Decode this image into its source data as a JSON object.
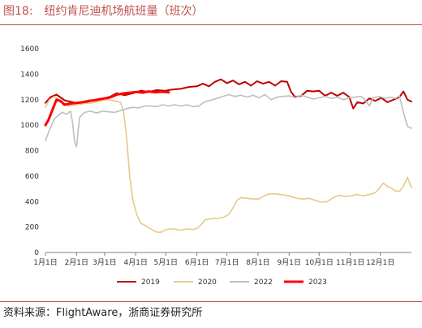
{
  "figure": {
    "number": "图18:",
    "title": "纽约肯尼迪机场航班量（班次）"
  },
  "source": "资料来源：FlightAware，浙商证券研究所",
  "chart_data": {
    "type": "line",
    "title": "",
    "xlabel": "",
    "ylabel": "",
    "ylim": [
      0,
      1600
    ],
    "yticks": [
      0,
      200,
      400,
      600,
      800,
      1000,
      1200,
      1400,
      1600
    ],
    "xlim": [
      1,
      366
    ],
    "xticks": [
      {
        "day": 1,
        "label": "1月1日"
      },
      {
        "day": 32,
        "label": "2月1日"
      },
      {
        "day": 60,
        "label": "3月1日"
      },
      {
        "day": 91,
        "label": "4月1日"
      },
      {
        "day": 121,
        "label": "5月1日"
      },
      {
        "day": 152,
        "label": "6月1日"
      },
      {
        "day": 182,
        "label": "7月1日"
      },
      {
        "day": 213,
        "label": "8月1日"
      },
      {
        "day": 244,
        "label": "9月1日"
      },
      {
        "day": 274,
        "label": "10月1日"
      },
      {
        "day": 305,
        "label": "11月1日"
      },
      {
        "day": 335,
        "label": "12月1日"
      }
    ],
    "x_unit": "day of year",
    "grid": false,
    "legend": "bottom",
    "series": [
      {
        "name": "2019",
        "color": "#c00000",
        "width": 2,
        "points": [
          [
            1,
            1175
          ],
          [
            6,
            1220
          ],
          [
            12,
            1240
          ],
          [
            20,
            1195
          ],
          [
            28,
            1180
          ],
          [
            36,
            1165
          ],
          [
            44,
            1185
          ],
          [
            52,
            1200
          ],
          [
            60,
            1210
          ],
          [
            66,
            1225
          ],
          [
            72,
            1250
          ],
          [
            80,
            1235
          ],
          [
            88,
            1250
          ],
          [
            96,
            1270
          ],
          [
            104,
            1260
          ],
          [
            112,
            1275
          ],
          [
            120,
            1270
          ],
          [
            128,
            1280
          ],
          [
            136,
            1285
          ],
          [
            144,
            1300
          ],
          [
            152,
            1305
          ],
          [
            158,
            1325
          ],
          [
            164,
            1305
          ],
          [
            170,
            1340
          ],
          [
            176,
            1360
          ],
          [
            182,
            1330
          ],
          [
            188,
            1350
          ],
          [
            194,
            1320
          ],
          [
            200,
            1340
          ],
          [
            206,
            1310
          ],
          [
            212,
            1345
          ],
          [
            218,
            1325
          ],
          [
            224,
            1340
          ],
          [
            230,
            1310
          ],
          [
            236,
            1345
          ],
          [
            242,
            1340
          ],
          [
            246,
            1260
          ],
          [
            250,
            1220
          ],
          [
            256,
            1230
          ],
          [
            262,
            1270
          ],
          [
            268,
            1265
          ],
          [
            274,
            1270
          ],
          [
            280,
            1230
          ],
          [
            286,
            1255
          ],
          [
            292,
            1230
          ],
          [
            298,
            1255
          ],
          [
            304,
            1220
          ],
          [
            308,
            1130
          ],
          [
            312,
            1180
          ],
          [
            318,
            1170
          ],
          [
            324,
            1210
          ],
          [
            330,
            1190
          ],
          [
            336,
            1215
          ],
          [
            342,
            1180
          ],
          [
            348,
            1200
          ],
          [
            354,
            1220
          ],
          [
            358,
            1265
          ],
          [
            362,
            1200
          ],
          [
            366,
            1185
          ]
        ]
      },
      {
        "name": "2020",
        "color": "#e6c98a",
        "width": 1.6,
        "points": [
          [
            1,
            1140
          ],
          [
            5,
            1200
          ],
          [
            10,
            1225
          ],
          [
            16,
            1180
          ],
          [
            24,
            1150
          ],
          [
            32,
            1160
          ],
          [
            40,
            1170
          ],
          [
            48,
            1175
          ],
          [
            56,
            1190
          ],
          [
            64,
            1200
          ],
          [
            70,
            1190
          ],
          [
            76,
            1180
          ],
          [
            79,
            1100
          ],
          [
            82,
            900
          ],
          [
            85,
            600
          ],
          [
            88,
            420
          ],
          [
            92,
            300
          ],
          [
            96,
            230
          ],
          [
            100,
            215
          ],
          [
            104,
            195
          ],
          [
            108,
            175
          ],
          [
            112,
            160
          ],
          [
            116,
            158
          ],
          [
            120,
            175
          ],
          [
            124,
            185
          ],
          [
            130,
            185
          ],
          [
            136,
            175
          ],
          [
            142,
            185
          ],
          [
            148,
            180
          ],
          [
            152,
            190
          ],
          [
            156,
            215
          ],
          [
            160,
            255
          ],
          [
            166,
            265
          ],
          [
            172,
            268
          ],
          [
            178,
            275
          ],
          [
            184,
            300
          ],
          [
            188,
            350
          ],
          [
            192,
            410
          ],
          [
            196,
            430
          ],
          [
            202,
            425
          ],
          [
            208,
            420
          ],
          [
            214,
            420
          ],
          [
            218,
            440
          ],
          [
            224,
            460
          ],
          [
            230,
            460
          ],
          [
            236,
            455
          ],
          [
            244,
            445
          ],
          [
            252,
            425
          ],
          [
            258,
            420
          ],
          [
            264,
            425
          ],
          [
            270,
            410
          ],
          [
            276,
            395
          ],
          [
            282,
            400
          ],
          [
            288,
            430
          ],
          [
            294,
            450
          ],
          [
            300,
            440
          ],
          [
            306,
            445
          ],
          [
            312,
            455
          ],
          [
            318,
            445
          ],
          [
            324,
            455
          ],
          [
            330,
            470
          ],
          [
            334,
            505
          ],
          [
            338,
            545
          ],
          [
            342,
            520
          ],
          [
            346,
            505
          ],
          [
            350,
            485
          ],
          [
            354,
            480
          ],
          [
            358,
            520
          ],
          [
            362,
            590
          ],
          [
            366,
            510
          ]
        ]
      },
      {
        "name": "2022",
        "color": "#bfbfbf",
        "width": 1.6,
        "points": [
          [
            1,
            880
          ],
          [
            5,
            960
          ],
          [
            10,
            1050
          ],
          [
            14,
            1080
          ],
          [
            18,
            1100
          ],
          [
            22,
            1085
          ],
          [
            26,
            1110
          ],
          [
            28,
            1020
          ],
          [
            30,
            870
          ],
          [
            32,
            830
          ],
          [
            35,
            1060
          ],
          [
            40,
            1100
          ],
          [
            46,
            1110
          ],
          [
            52,
            1095
          ],
          [
            58,
            1110
          ],
          [
            64,
            1105
          ],
          [
            70,
            1100
          ],
          [
            76,
            1115
          ],
          [
            82,
            1130
          ],
          [
            88,
            1140
          ],
          [
            94,
            1135
          ],
          [
            100,
            1150
          ],
          [
            106,
            1150
          ],
          [
            112,
            1145
          ],
          [
            118,
            1160
          ],
          [
            124,
            1150
          ],
          [
            130,
            1160
          ],
          [
            136,
            1150
          ],
          [
            142,
            1160
          ],
          [
            148,
            1145
          ],
          [
            154,
            1150
          ],
          [
            160,
            1185
          ],
          [
            166,
            1195
          ],
          [
            172,
            1210
          ],
          [
            178,
            1225
          ],
          [
            184,
            1240
          ],
          [
            190,
            1225
          ],
          [
            196,
            1235
          ],
          [
            202,
            1220
          ],
          [
            208,
            1235
          ],
          [
            214,
            1215
          ],
          [
            220,
            1240
          ],
          [
            226,
            1200
          ],
          [
            232,
            1220
          ],
          [
            238,
            1225
          ],
          [
            244,
            1230
          ],
          [
            250,
            1215
          ],
          [
            256,
            1235
          ],
          [
            262,
            1220
          ],
          [
            268,
            1205
          ],
          [
            274,
            1215
          ],
          [
            280,
            1225
          ],
          [
            286,
            1210
          ],
          [
            292,
            1220
          ],
          [
            298,
            1200
          ],
          [
            304,
            1215
          ],
          [
            310,
            1220
          ],
          [
            316,
            1225
          ],
          [
            320,
            1195
          ],
          [
            324,
            1150
          ],
          [
            328,
            1215
          ],
          [
            334,
            1225
          ],
          [
            340,
            1210
          ],
          [
            346,
            1220
          ],
          [
            350,
            1210
          ],
          [
            354,
            1230
          ],
          [
            358,
            1100
          ],
          [
            362,
            990
          ],
          [
            366,
            975
          ]
        ]
      },
      {
        "name": "2023",
        "color": "#ff0000",
        "width": 3,
        "points": [
          [
            1,
            1000
          ],
          [
            4,
            1040
          ],
          [
            8,
            1120
          ],
          [
            12,
            1200
          ],
          [
            16,
            1190
          ],
          [
            20,
            1160
          ],
          [
            26,
            1170
          ],
          [
            32,
            1175
          ],
          [
            38,
            1180
          ],
          [
            44,
            1190
          ],
          [
            50,
            1195
          ],
          [
            56,
            1205
          ],
          [
            60,
            1210
          ],
          [
            64,
            1215
          ],
          [
            68,
            1225
          ],
          [
            72,
            1240
          ],
          [
            76,
            1245
          ],
          [
            80,
            1250
          ],
          [
            86,
            1255
          ],
          [
            92,
            1260
          ],
          [
            98,
            1255
          ],
          [
            104,
            1265
          ],
          [
            110,
            1258
          ],
          [
            116,
            1262
          ],
          [
            120,
            1260
          ],
          [
            124,
            1258
          ]
        ]
      }
    ]
  }
}
